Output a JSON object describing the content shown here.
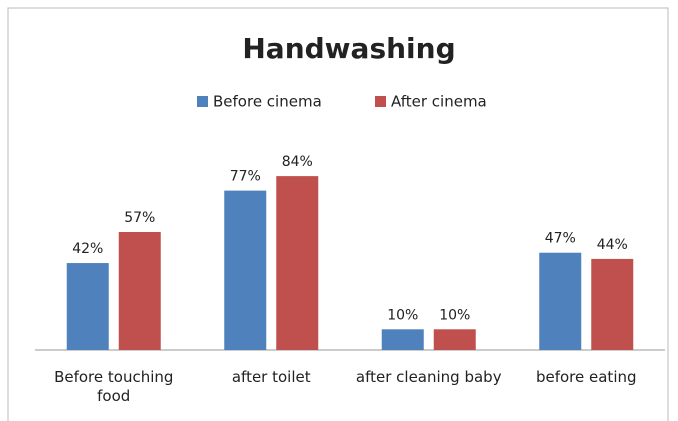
{
  "chart_data": {
    "type": "bar",
    "title": "Handwashing",
    "categories": [
      "Before touching food",
      "after toilet",
      "after cleaning baby",
      "before eating"
    ],
    "series": [
      {
        "name": "Before cinema",
        "color": "#4f81bd",
        "values": [
          42,
          77,
          10,
          47
        ],
        "value_labels": [
          "42%",
          "77%",
          "10%",
          "47%"
        ]
      },
      {
        "name": "After cinema",
        "color": "#c0504d",
        "values": [
          57,
          84,
          10,
          44
        ],
        "value_labels": [
          "57%",
          "84%",
          "10%",
          "44%"
        ]
      }
    ],
    "legend": "top"
  }
}
